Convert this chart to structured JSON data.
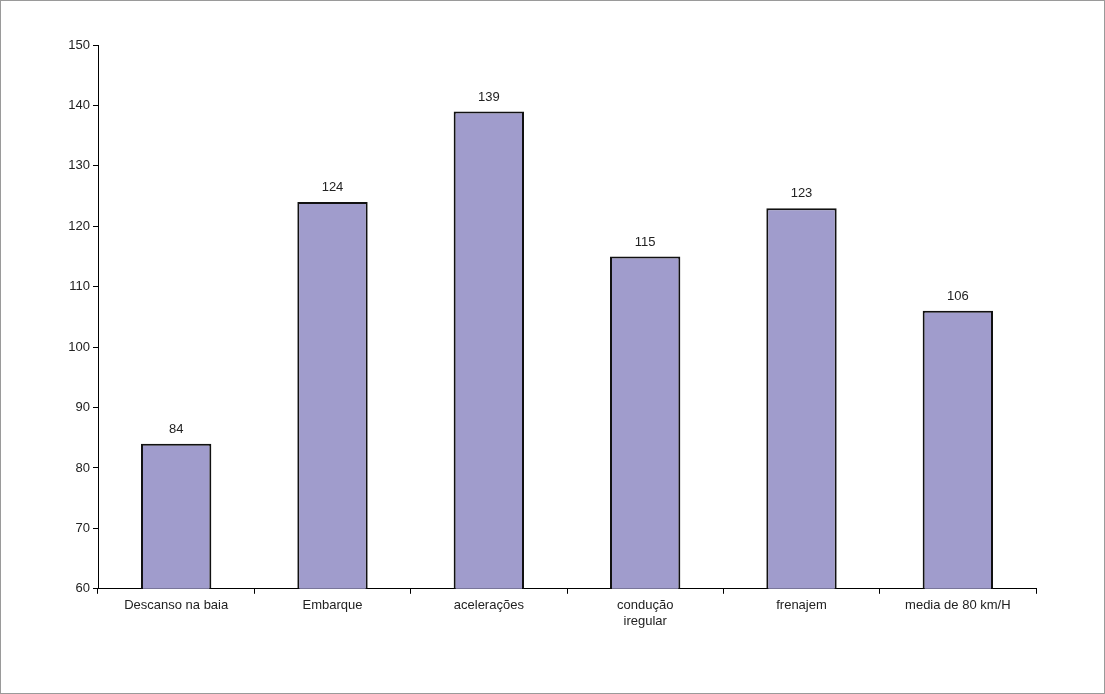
{
  "chart_data": {
    "type": "bar",
    "categories": [
      "Descanso na baia",
      "Embarque",
      "acelerações",
      "condução iregular",
      "frenajem",
      "media de 80 km/H"
    ],
    "values": [
      84,
      124,
      139,
      115,
      123,
      106
    ],
    "color": "#a09ccc",
    "ylim": [
      60,
      150
    ],
    "yticks": [
      60,
      70,
      80,
      90,
      100,
      110,
      120,
      130,
      140,
      150
    ],
    "grid": false,
    "legend": false,
    "data_labels": true
  }
}
